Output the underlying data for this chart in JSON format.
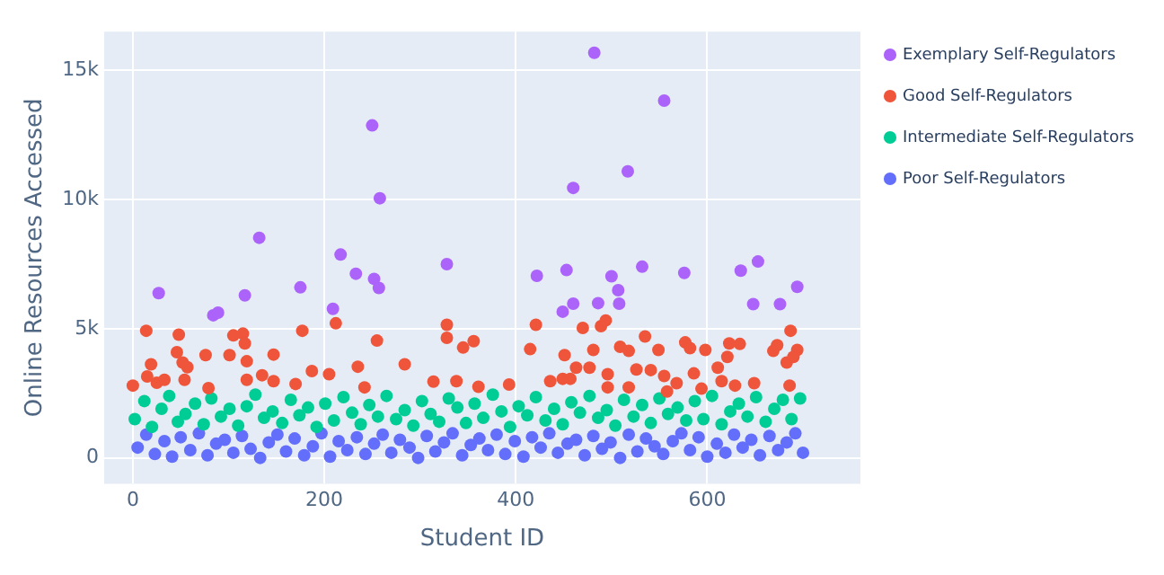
{
  "chart_data": {
    "type": "scatter",
    "xlabel": "Student ID",
    "ylabel": "Online Resources Accessed",
    "xlim": [
      -30,
      760
    ],
    "xticks": [
      0,
      200,
      400,
      600
    ],
    "ylim": [
      -1000,
      16500
    ],
    "yticks": [
      0,
      {
        "value": 5000,
        "label": "5k"
      },
      {
        "value": 10000,
        "label": "10k"
      },
      {
        "value": 15000,
        "label": "15k"
      }
    ],
    "grid": true,
    "legend": "top right",
    "marker": "circle",
    "series": [
      {
        "name": "Exemplary Self-Regulators",
        "color": "#ab63fa",
        "x": [
          27,
          84,
          89,
          117,
          132,
          175,
          209,
          217,
          233,
          250,
          258,
          252,
          257,
          328,
          422,
          453,
          460,
          482,
          449,
          460,
          486,
          500,
          507,
          508,
          517,
          532,
          555,
          576,
          635,
          653,
          648,
          676,
          694
        ],
        "values": [
          6380,
          5520,
          5620,
          6290,
          8520,
          6600,
          5770,
          7870,
          7130,
          12870,
          10050,
          6930,
          6580,
          7500,
          7050,
          7270,
          10450,
          15680,
          5660,
          5970,
          5990,
          7030,
          6490,
          5970,
          11090,
          7400,
          13830,
          7160,
          7250,
          7600,
          5950,
          5950,
          6620
        ]
      },
      {
        "name": "Good Self-Regulators",
        "color": "#ef553b",
        "x": [
          0,
          14,
          19,
          15,
          25,
          33,
          48,
          46,
          52,
          57,
          54,
          76,
          79,
          101,
          105,
          115,
          117,
          119,
          119,
          135,
          147,
          147,
          170,
          177,
          187,
          205,
          212,
          235,
          242,
          255,
          284,
          314,
          328,
          328,
          338,
          345,
          356,
          361,
          393,
          415,
          421,
          436,
          451,
          449,
          457,
          463,
          470,
          477,
          481,
          489,
          494,
          496,
          496,
          509,
          518,
          518,
          526,
          535,
          541,
          549,
          555,
          558,
          568,
          577,
          582,
          586,
          598,
          594,
          611,
          615,
          621,
          623,
          634,
          629,
          649,
          669,
          673,
          683,
          686,
          687,
          694,
          690
        ],
        "values": [
          2800,
          4920,
          3620,
          3150,
          2910,
          3020,
          4770,
          4090,
          3690,
          3510,
          3020,
          3980,
          2700,
          3980,
          4740,
          4810,
          4430,
          3740,
          3020,
          3200,
          4000,
          2970,
          2860,
          4920,
          3360,
          3240,
          5210,
          3530,
          2730,
          4540,
          3620,
          2950,
          5150,
          4650,
          2970,
          4270,
          4520,
          2750,
          2840,
          4210,
          5150,
          2970,
          3980,
          3060,
          3060,
          3490,
          5030,
          3490,
          4180,
          5100,
          5320,
          3240,
          2730,
          4300,
          4140,
          2730,
          3420,
          4700,
          3400,
          4180,
          3170,
          2570,
          2890,
          4470,
          4250,
          3270,
          4180,
          2680,
          3490,
          2970,
          3910,
          4430,
          4410,
          2800,
          2890,
          4140,
          4360,
          3690,
          2800,
          4920,
          4180,
          3910
        ]
      },
      {
        "name": "Intermediate Self-Regulators",
        "color": "#00cc96",
        "x": [
          2,
          12,
          20,
          30,
          38,
          47,
          55,
          65,
          74,
          82,
          92,
          101,
          110,
          119,
          128,
          137,
          146,
          156,
          165,
          174,
          183,
          192,
          201,
          210,
          220,
          229,
          238,
          247,
          256,
          265,
          275,
          284,
          293,
          302,
          311,
          320,
          330,
          339,
          348,
          357,
          366,
          376,
          385,
          394,
          403,
          412,
          421,
          431,
          440,
          449,
          458,
          467,
          477,
          486,
          495,
          504,
          513,
          523,
          532,
          541,
          550,
          559,
          569,
          578,
          587,
          596,
          605,
          615,
          624,
          633,
          642,
          651,
          661,
          670,
          679,
          688,
          697
        ],
        "values": [
          1500,
          2200,
          1200,
          1900,
          2400,
          1400,
          1700,
          2100,
          1300,
          2300,
          1600,
          1900,
          1250,
          2000,
          2450,
          1550,
          1800,
          1350,
          2250,
          1650,
          1950,
          1200,
          2100,
          1450,
          2350,
          1750,
          1300,
          2050,
          1600,
          2400,
          1500,
          1850,
          1250,
          2200,
          1700,
          1400,
          2300,
          1950,
          1350,
          2100,
          1550,
          2450,
          1800,
          1200,
          2000,
          1650,
          2350,
          1450,
          1900,
          1300,
          2150,
          1750,
          2400,
          1550,
          1850,
          1250,
          2250,
          1600,
          2050,
          1350,
          2300,
          1700,
          1950,
          1450,
          2200,
          1500,
          2400,
          1300,
          1800,
          2100,
          1600,
          2350,
          1400,
          1900,
          2250,
          1500,
          2300
        ]
      },
      {
        "name": "Poor Self-Regulators",
        "color": "#636efa",
        "x": [
          5,
          14,
          23,
          33,
          41,
          50,
          60,
          69,
          78,
          87,
          96,
          105,
          114,
          123,
          133,
          142,
          151,
          160,
          169,
          179,
          188,
          197,
          206,
          215,
          224,
          234,
          243,
          252,
          261,
          270,
          279,
          289,
          298,
          307,
          316,
          325,
          334,
          344,
          353,
          362,
          371,
          380,
          389,
          399,
          408,
          417,
          426,
          435,
          444,
          454,
          463,
          472,
          481,
          490,
          499,
          509,
          518,
          527,
          536,
          545,
          554,
          564,
          573,
          582,
          591,
          600,
          610,
          619,
          628,
          637,
          646,
          655,
          665,
          674,
          683,
          692,
          700
        ],
        "values": [
          400,
          900,
          150,
          650,
          50,
          800,
          300,
          950,
          100,
          550,
          700,
          200,
          850,
          350,
          0,
          600,
          900,
          250,
          750,
          100,
          450,
          950,
          50,
          650,
          300,
          800,
          150,
          550,
          900,
          200,
          700,
          400,
          0,
          850,
          250,
          600,
          950,
          100,
          500,
          750,
          300,
          900,
          150,
          650,
          50,
          800,
          400,
          950,
          200,
          550,
          700,
          100,
          850,
          350,
          600,
          0,
          900,
          250,
          750,
          450,
          150,
          650,
          950,
          300,
          800,
          50,
          550,
          200,
          900,
          400,
          700,
          100,
          850,
          300,
          600,
          950,
          200
        ]
      }
    ]
  }
}
